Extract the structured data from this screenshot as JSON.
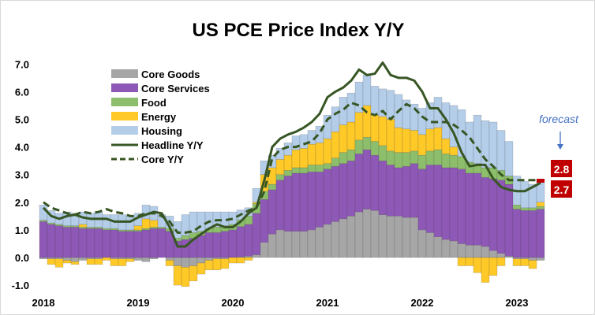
{
  "chart_data": {
    "type": "bar",
    "stacked": true,
    "title": "US PCE Price Index Y/Y",
    "xlabel": "",
    "ylabel": "",
    "ylim": [
      -1.0,
      7.0
    ],
    "yticks": [
      "7.0",
      "6.0",
      "5.0",
      "4.0",
      "3.0",
      "2.0",
      "1.0",
      "0.0",
      "-1.0"
    ],
    "ytick_values": [
      7,
      6,
      5,
      4,
      3,
      2,
      1,
      0,
      -1
    ],
    "xtick_labels": [
      "2018",
      "2019",
      "2020",
      "2021",
      "2022",
      "2023"
    ],
    "start": "2018-01",
    "frequency": "monthly",
    "legend_position": "top-left",
    "bar_series": [
      {
        "name": "Core Goods",
        "color": "#A6A6A6",
        "values": [
          -0.05,
          -0.05,
          -0.05,
          -0.1,
          -0.15,
          -0.1,
          -0.05,
          -0.05,
          0,
          -0.05,
          -0.05,
          -0.05,
          -0.1,
          -0.15,
          -0.05,
          0,
          -0.1,
          -0.3,
          -0.35,
          -0.3,
          -0.2,
          -0.1,
          -0.05,
          -0.05,
          0,
          0.02,
          0.05,
          0.1,
          0.55,
          0.85,
          1.0,
          0.95,
          0.95,
          0.95,
          1.0,
          1.1,
          1.2,
          1.3,
          1.4,
          1.5,
          1.65,
          1.75,
          1.7,
          1.55,
          1.5,
          1.5,
          1.45,
          1.45,
          1.0,
          0.9,
          0.75,
          0.65,
          0.6,
          0.5,
          0.45,
          0.45,
          0.4,
          0.25,
          0.15,
          0.05,
          -0.05,
          -0.05,
          -0.1,
          -0.1
        ]
      },
      {
        "name": "Core Services",
        "color": "#8E58B6",
        "values": [
          1.3,
          1.2,
          1.15,
          1.1,
          1.1,
          1.05,
          1.05,
          1.05,
          1.0,
          1.0,
          0.95,
          0.95,
          0.95,
          1.0,
          1.05,
          1.05,
          0.95,
          0.6,
          0.65,
          0.7,
          0.8,
          0.9,
          0.9,
          0.95,
          1.0,
          1.1,
          1.15,
          1.5,
          1.55,
          1.6,
          1.8,
          2.0,
          2.1,
          2.1,
          2.1,
          2.0,
          2.0,
          2.0,
          2.0,
          2.0,
          2.1,
          2.15,
          2.0,
          1.95,
          1.85,
          1.75,
          1.85,
          1.95,
          2.2,
          2.45,
          2.6,
          2.6,
          2.65,
          2.7,
          2.6,
          2.6,
          2.5,
          2.6,
          2.65,
          2.6,
          1.75,
          1.7,
          1.7,
          1.75
        ]
      },
      {
        "name": "Food",
        "color": "#8DBE6B",
        "values": [
          0.05,
          0.05,
          0.05,
          0.05,
          0.05,
          0.05,
          0.05,
          0.05,
          0.05,
          0.05,
          0.05,
          0.05,
          0.05,
          0.05,
          0.05,
          0.05,
          0.1,
          0.1,
          0.15,
          0.2,
          0.15,
          0.15,
          0.2,
          0.2,
          0.2,
          0.25,
          0.3,
          0.35,
          0.3,
          0.2,
          0.2,
          0.2,
          0.2,
          0.2,
          0.25,
          0.25,
          0.2,
          0.3,
          0.4,
          0.4,
          0.5,
          0.45,
          0.5,
          0.55,
          0.5,
          0.55,
          0.5,
          0.45,
          0.5,
          0.5,
          0.55,
          0.5,
          0.45,
          0.45,
          0.4,
          0.35,
          0.35,
          0.4,
          0.35,
          0.3,
          0.15,
          0.1,
          0.1,
          0.1
        ]
      },
      {
        "name": "Energy",
        "color": "#FFC928",
        "values": [
          0,
          -0.2,
          -0.3,
          -0.1,
          -0.1,
          0.1,
          -0.2,
          -0.2,
          -0.1,
          -0.25,
          -0.25,
          -0.1,
          0.15,
          0.35,
          0.25,
          0,
          -0.2,
          -0.7,
          -0.7,
          -0.55,
          -0.4,
          -0.35,
          -0.4,
          -0.35,
          -0.2,
          -0.2,
          -0.1,
          0.05,
          0.6,
          0.6,
          0.55,
          0.55,
          0.65,
          0.7,
          0.75,
          0.8,
          0.9,
          0.95,
          1.0,
          1.0,
          1.0,
          1.15,
          0.95,
          1.05,
          1.15,
          0.9,
          0.85,
          0.75,
          0.75,
          0.8,
          0.8,
          0.55,
          0.3,
          -0.3,
          -0.3,
          -0.55,
          -0.9,
          -0.65,
          -0.3,
          0,
          -0.25,
          -0.25,
          -0.3,
          0.15
        ]
      },
      {
        "name": "Housing",
        "color": "#B4CDE9",
        "values": [
          0.55,
          0.45,
          0.4,
          0.5,
          0.45,
          0.45,
          0.5,
          0.55,
          0.5,
          0.5,
          0.55,
          0.5,
          0.45,
          0.5,
          0.5,
          0.45,
          0.45,
          0.6,
          0.75,
          0.75,
          0.7,
          0.6,
          0.55,
          0.5,
          0.45,
          0.35,
          0.3,
          0.5,
          0.5,
          0.45,
          0.4,
          0.45,
          0.5,
          0.5,
          0.5,
          0.6,
          0.85,
          0.9,
          1.0,
          1.05,
          1.1,
          1.1,
          1.05,
          1.0,
          1.05,
          1.2,
          1.05,
          0.95,
          0.95,
          0.95,
          1.1,
          1.3,
          1.5,
          1.7,
          1.45,
          1.75,
          1.7,
          1.65,
          1.45,
          1.25,
          1.05,
          0.95,
          0.85,
          0.8
        ]
      }
    ],
    "line_series": [
      {
        "name": "Headline Y/Y",
        "color": "#375623",
        "style": "solid",
        "values": [
          1.8,
          1.5,
          1.4,
          1.5,
          1.55,
          1.45,
          1.4,
          1.4,
          1.4,
          1.3,
          1.3,
          1.3,
          1.45,
          1.55,
          1.65,
          1.6,
          1.1,
          0.4,
          0.4,
          0.65,
          0.85,
          1.05,
          1.2,
          1.1,
          1.1,
          1.3,
          1.6,
          1.8,
          2.8,
          4.0,
          4.3,
          4.45,
          4.55,
          4.7,
          4.9,
          5.2,
          5.8,
          6.0,
          6.15,
          6.4,
          6.8,
          6.6,
          6.65,
          7.05,
          6.6,
          6.5,
          6.5,
          6.4,
          6.0,
          5.4,
          5.4,
          5.0,
          4.5,
          3.8,
          3.3,
          3.35,
          3.35,
          2.85,
          2.55,
          2.45,
          2.4,
          2.4,
          2.55,
          2.7
        ]
      },
      {
        "name": "Core Y/Y",
        "color": "#375623",
        "style": "dashed",
        "values": [
          2.0,
          1.8,
          1.7,
          1.6,
          1.55,
          1.65,
          1.6,
          1.65,
          1.75,
          1.65,
          1.6,
          1.5,
          1.5,
          1.6,
          1.6,
          1.5,
          1.3,
          0.9,
          0.9,
          0.95,
          1.15,
          1.3,
          1.35,
          1.35,
          1.4,
          1.55,
          1.7,
          1.8,
          2.4,
          3.6,
          3.9,
          4.0,
          4.0,
          4.1,
          4.2,
          4.5,
          5.0,
          5.2,
          5.35,
          5.6,
          5.5,
          5.25,
          5.15,
          5.3,
          5.0,
          5.3,
          5.55,
          5.4,
          5.1,
          4.9,
          4.9,
          4.9,
          4.8,
          4.6,
          4.35,
          3.95,
          3.55,
          3.3,
          3.0,
          2.8,
          2.8,
          2.8,
          2.8,
          2.8
        ]
      }
    ],
    "annotations": {
      "forecast_label": "forecast",
      "forecast_color": "#4472C4",
      "headline_forecast": "2.8",
      "core_forecast": "2.7",
      "box_color": "#C00000"
    }
  }
}
